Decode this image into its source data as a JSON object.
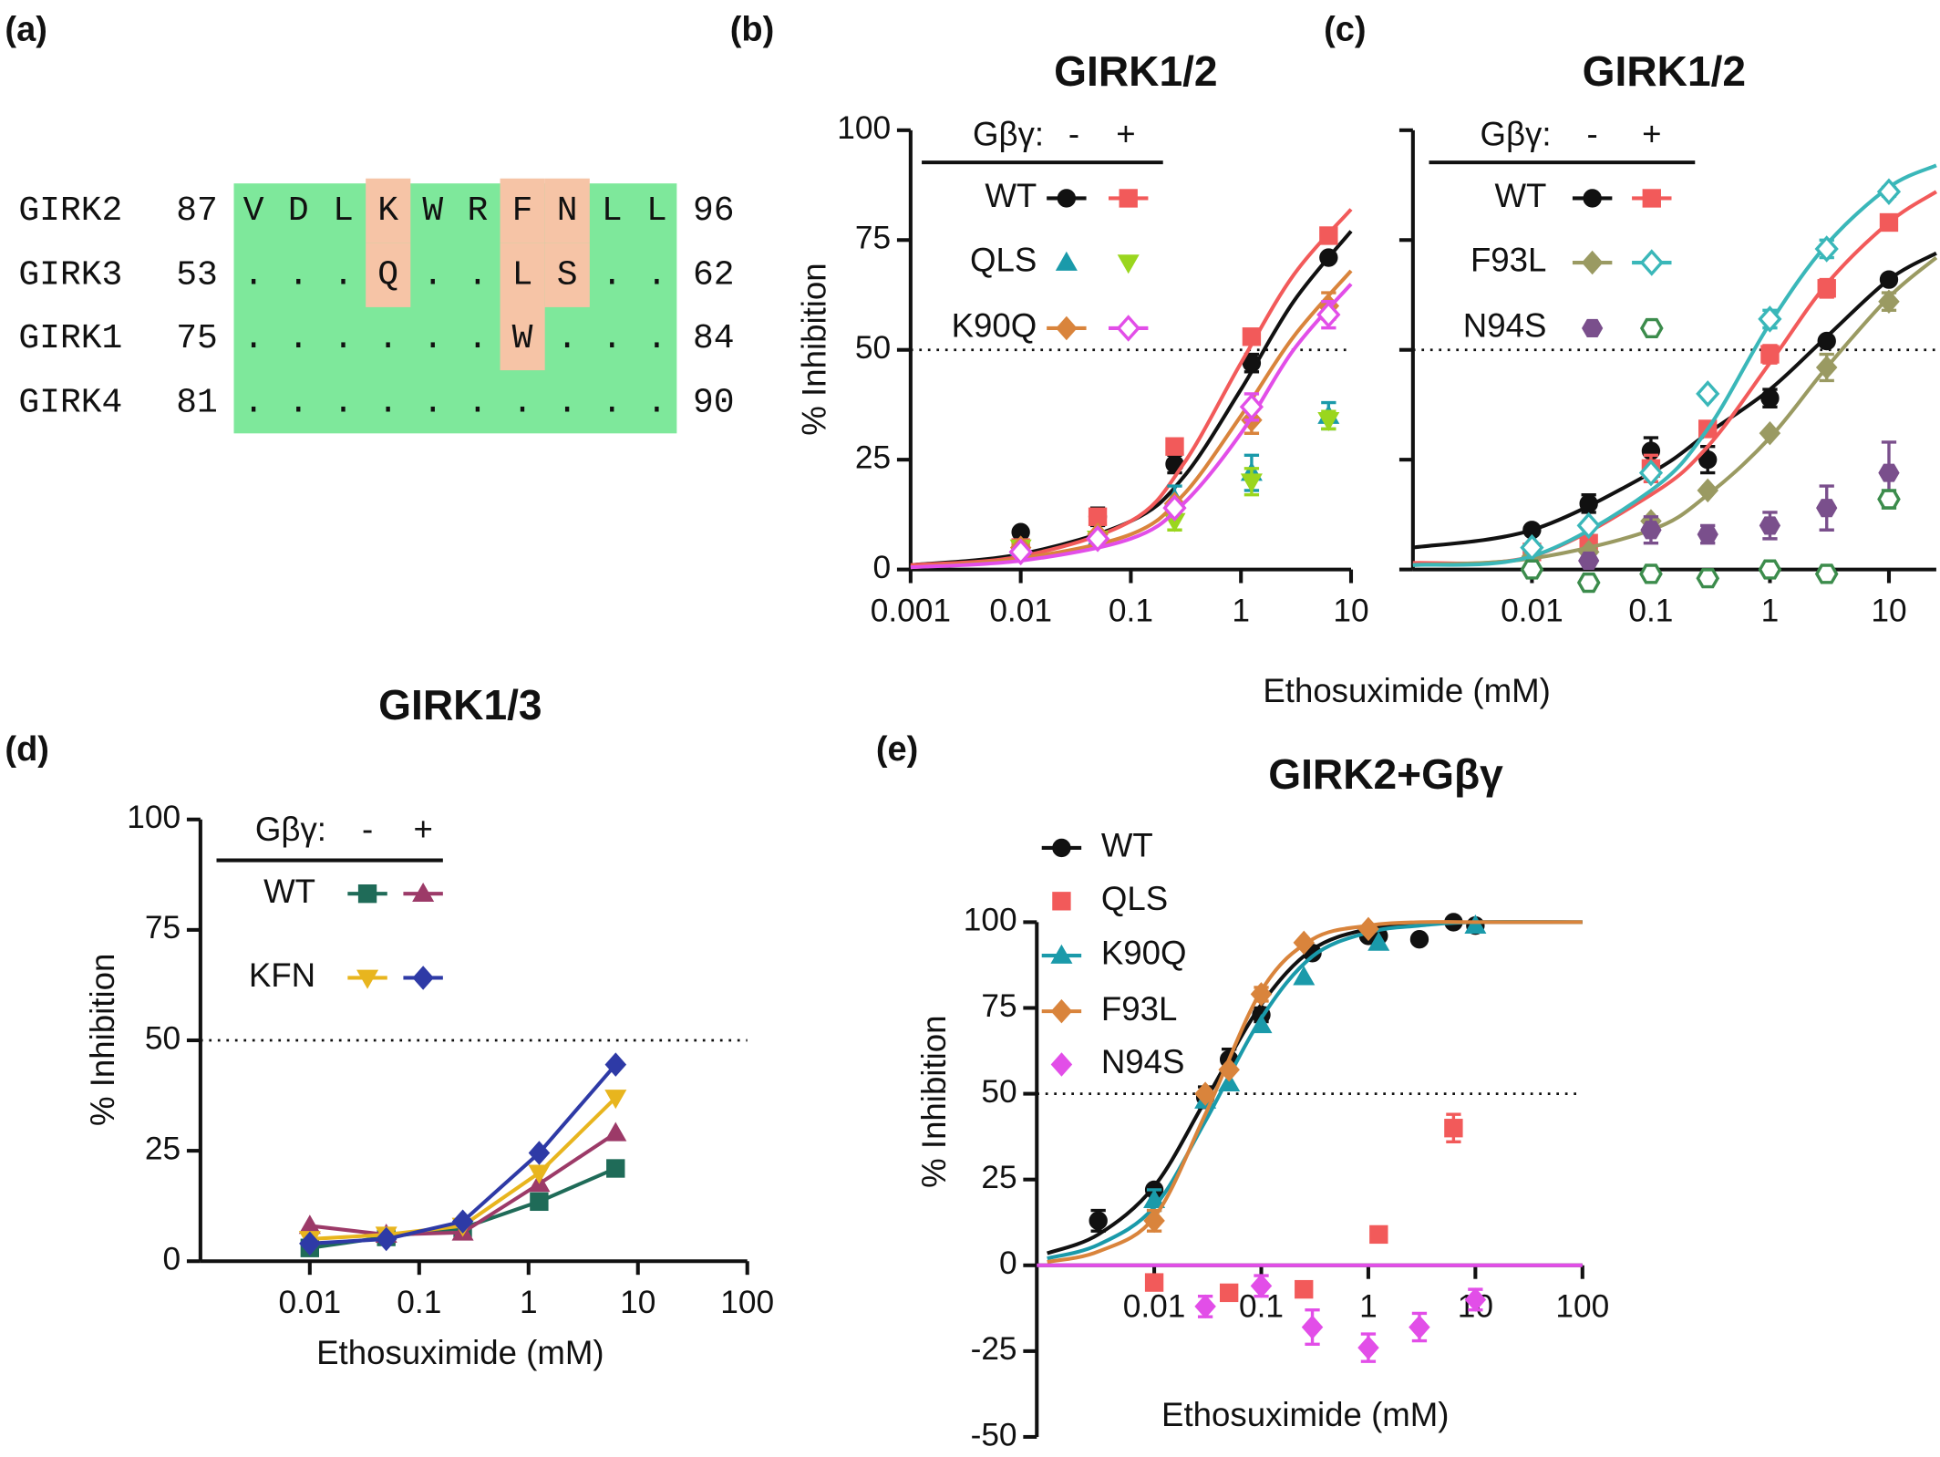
{
  "alignment": {
    "panel": "(a)",
    "colors": {
      "conserved": "#7ee89b",
      "variant": "#f6c4a6"
    },
    "rows": [
      {
        "name": "GIRK2",
        "start": 87,
        "residues": [
          "V",
          "D",
          "L",
          "K",
          "W",
          "R",
          "F",
          "N",
          "L",
          "L"
        ],
        "end": 96
      },
      {
        "name": "GIRK3",
        "start": 53,
        "residues": [
          ".",
          ".",
          ".",
          "Q",
          ".",
          ".",
          "L",
          "S",
          ".",
          "."
        ],
        "end": 62
      },
      {
        "name": "GIRK1",
        "start": 75,
        "residues": [
          ".",
          ".",
          ".",
          ".",
          ".",
          ".",
          "W",
          ".",
          ".",
          "."
        ],
        "end": 84
      },
      {
        "name": "GIRK4",
        "start": 81,
        "residues": [
          ".",
          ".",
          ".",
          ".",
          ".",
          ".",
          ".",
          ".",
          ".",
          "."
        ],
        "end": 90
      }
    ]
  },
  "chart_data": [
    {
      "panel": "(b)",
      "type": "scatter",
      "title": "GIRK1/2",
      "ylabel": "% Inhibition",
      "xscale": "log",
      "xlim": [
        0.001,
        10
      ],
      "xticks": [
        0.001,
        0.01,
        0.1,
        1,
        10
      ],
      "ylim": [
        0,
        100
      ],
      "yticks": [
        0,
        25,
        50,
        75,
        100
      ],
      "reference_line": 50,
      "legend": {
        "header": [
          "Gβγ:",
          "-",
          "+"
        ]
      },
      "x": [
        0.01,
        0.05,
        0.25,
        1.25,
        6.25
      ],
      "series": [
        {
          "name": "WT",
          "color": "#111111",
          "marker": "circle",
          "values": [
            8.5,
            12,
            24,
            47,
            71
          ],
          "errors": [
            null,
            2,
            2,
            2,
            null
          ],
          "fit": {
            "x": [
              0.001,
              0.01,
              0.1,
              0.3,
              1,
              3,
              10
            ],
            "values": [
              1,
              3.5,
              11,
              21,
              41,
              61,
              77
            ]
          }
        },
        {
          "name": "WT",
          "color": "#f25a5a",
          "marker": "square",
          "values": [
            5,
            12,
            28,
            53,
            76
          ],
          "errors": [
            null,
            null,
            null,
            null,
            null
          ],
          "fit": {
            "x": [
              0.001,
              0.01,
              0.1,
              0.3,
              1,
              3,
              10
            ],
            "values": [
              1,
              3,
              11,
              24,
              47,
              67,
              82
            ]
          }
        },
        {
          "name": "QLS",
          "color": "#1a9aaa",
          "marker": "triangle",
          "values": [
            5,
            7,
            16,
            22,
            35
          ],
          "errors": [
            null,
            null,
            3,
            4,
            3
          ]
        },
        {
          "name": "QLS",
          "color": "#9ad61e",
          "marker": "triangle-down",
          "values": [
            5,
            7,
            11,
            20,
            34
          ],
          "errors": [
            null,
            null,
            2,
            3,
            2
          ]
        },
        {
          "name": "K90Q",
          "color": "#d9843c",
          "marker": "diamond",
          "values": [
            5,
            8,
            15,
            34,
            60
          ],
          "errors": [
            null,
            null,
            null,
            3,
            3
          ],
          "fit": {
            "x": [
              0.001,
              0.01,
              0.1,
              0.3,
              1,
              3,
              10
            ],
            "values": [
              0.5,
              2.5,
              8,
              17,
              35,
              53,
              68
            ]
          }
        },
        {
          "name": "K90Q",
          "color": "#e24ee8",
          "marker": "open-diamond",
          "values": [
            4,
            7,
            14,
            37,
            58
          ],
          "errors": [
            null,
            null,
            null,
            3,
            3
          ],
          "fit": {
            "x": [
              0.001,
              0.01,
              0.1,
              0.3,
              1,
              3,
              10
            ],
            "values": [
              0.5,
              2,
              7,
              15,
              31,
              50,
              65
            ]
          }
        }
      ]
    },
    {
      "panel": "(c)",
      "type": "scatter",
      "title": "GIRK1/2",
      "xlabel": "Ethosuximide (mM)",
      "xscale": "log",
      "xlim": [
        0.001,
        25
      ],
      "xticks": [
        0.01,
        0.1,
        1,
        10
      ],
      "ylim": [
        0,
        100
      ],
      "yticks": [
        0,
        25,
        50,
        75,
        100
      ],
      "ytick_labels": false,
      "reference_line": 50,
      "legend": {
        "header": [
          "Gβγ:",
          "-",
          "+"
        ]
      },
      "x": [
        0.01,
        0.03,
        0.1,
        0.3,
        1,
        3,
        10
      ],
      "series": [
        {
          "name": "WT",
          "color": "#111111",
          "marker": "circle",
          "values": [
            9,
            15,
            27,
            25,
            39,
            52,
            66
          ],
          "errors": [
            null,
            2,
            3,
            3,
            2,
            null,
            null
          ],
          "fit": {
            "x": [
              0.001,
              0.01,
              0.1,
              0.3,
              1,
              3,
              10,
              25
            ],
            "values": [
              5,
              9,
              22,
              31,
              41,
              53,
              66,
              72
            ]
          }
        },
        {
          "name": "WT",
          "color": "#f25a5a",
          "marker": "square",
          "values": [
            4,
            6,
            23,
            32,
            49,
            64,
            79
          ],
          "errors": [
            null,
            null,
            3,
            null,
            2,
            2,
            null
          ],
          "fit": {
            "x": [
              0.001,
              0.01,
              0.1,
              0.3,
              1,
              3,
              10,
              25
            ],
            "values": [
              1.5,
              3,
              17,
              28,
              47,
              65,
              79,
              86
            ]
          }
        },
        {
          "name": "F93L",
          "color": "#9a9a62",
          "marker": "diamond",
          "values": [
            3,
            4,
            11,
            18,
            31,
            46,
            61
          ],
          "errors": [
            null,
            null,
            null,
            null,
            null,
            3,
            2
          ],
          "fit": {
            "x": [
              0.001,
              0.01,
              0.1,
              0.3,
              1,
              3,
              10,
              25
            ],
            "values": [
              1,
              2.5,
              9,
              17,
              30,
              46,
              62,
              71
            ]
          }
        },
        {
          "name": "F93L",
          "color": "#3ab7b9",
          "marker": "open-diamond",
          "values": [
            5,
            10,
            22,
            40,
            57,
            73,
            86
          ],
          "errors": [
            null,
            null,
            null,
            null,
            2,
            2,
            1
          ],
          "fit": {
            "x": [
              0.001,
              0.01,
              0.1,
              0.3,
              1,
              3,
              10,
              25
            ],
            "values": [
              1,
              3,
              18,
              32,
              56,
              74,
              87,
              92
            ]
          }
        },
        {
          "name": "N94S",
          "color": "#7a4f8c",
          "marker": "hexagon",
          "values": [
            null,
            2,
            9,
            8,
            10,
            14,
            22
          ],
          "errors": [
            null,
            null,
            3,
            2,
            3,
            5,
            7
          ]
        },
        {
          "name": "N94S",
          "color": "#3c8c4c",
          "marker": "open-hexagon",
          "values": [
            0,
            -3,
            -1,
            -2,
            0,
            -1,
            16
          ],
          "errors": [
            null,
            null,
            null,
            null,
            null,
            null,
            2
          ]
        }
      ]
    },
    {
      "panel": "(d)",
      "type": "scatter",
      "title": "GIRK1/3",
      "ylabel": "% Inhibition",
      "xlabel": "Ethosuximide (mM)",
      "xscale": "log",
      "xlim": [
        0.001,
        100
      ],
      "xticks": [
        0.01,
        0.1,
        1,
        10,
        100
      ],
      "ylim": [
        0,
        100
      ],
      "yticks": [
        0,
        25,
        50,
        75,
        100
      ],
      "reference_line": 50,
      "connect": true,
      "legend": {
        "header": [
          "Gβγ:",
          "-",
          "+"
        ]
      },
      "x": [
        0.01,
        0.05,
        0.25,
        1.25,
        6.25
      ],
      "series": [
        {
          "name": "WT",
          "color": "#1f6b58",
          "marker": "square",
          "values": [
            3,
            5.5,
            7.5,
            13.5,
            21
          ]
        },
        {
          "name": "WT",
          "color": "#9c3a68",
          "marker": "triangle",
          "values": [
            8,
            6,
            6.5,
            17.5,
            29
          ]
        },
        {
          "name": "KFN",
          "color": "#e8b51e",
          "marker": "triangle-down",
          "values": [
            5,
            6,
            8,
            20,
            37
          ]
        },
        {
          "name": "KFN",
          "color": "#2e3aa6",
          "marker": "diamond",
          "values": [
            4,
            5,
            9,
            24.5,
            44.5
          ]
        }
      ]
    },
    {
      "panel": "(e)",
      "type": "scatter",
      "title": "GIRK2+Gβγ",
      "ylabel": "% Inhibition",
      "xlabel": "Ethosuximide (mM)",
      "xscale": "log",
      "xlim": [
        0.0008,
        100
      ],
      "xticks": [
        0.01,
        0.1,
        1,
        10,
        100
      ],
      "ylim": [
        -50,
        100
      ],
      "yticks": [
        -50,
        -25,
        0,
        25,
        50,
        75,
        100
      ],
      "reference_line": 50,
      "series": [
        {
          "name": "WT",
          "color": "#111111",
          "marker": "circle",
          "x": [
            0.003,
            0.01,
            0.03,
            0.05,
            0.1,
            0.3,
            1,
            1.25,
            3,
            6.25,
            10
          ],
          "values": [
            13,
            22,
            49,
            60,
            73,
            91,
            96,
            96,
            95,
            100,
            99
          ],
          "errors": [
            3,
            null,
            3,
            3,
            2,
            null,
            null,
            null,
            null,
            null,
            null
          ],
          "fit": {
            "x": [
              0.001,
              0.003,
              0.01,
              0.03,
              0.1,
              0.3,
              1,
              3,
              10,
              100
            ],
            "values": [
              3.5,
              9,
              23,
              48,
              76,
              92,
              98,
              99.5,
              100,
              100
            ]
          }
        },
        {
          "name": "QLS",
          "color": "#f25a5a",
          "marker": "square",
          "x": [
            0.01,
            0.05,
            0.25,
            1.25,
            6.25
          ],
          "values": [
            -5,
            -8,
            -7,
            9,
            40
          ],
          "errors": [
            null,
            null,
            null,
            2,
            4
          ]
        },
        {
          "name": "K90Q",
          "color": "#1a9aaa",
          "marker": "triangle",
          "x": [
            0.01,
            0.03,
            0.05,
            0.1,
            0.25,
            1.25,
            10
          ],
          "values": [
            19,
            48,
            53,
            70,
            84,
            94,
            99
          ],
          "errors": [
            3,
            null,
            null,
            null,
            null,
            null,
            null
          ],
          "fit": {
            "x": [
              0.001,
              0.003,
              0.01,
              0.03,
              0.1,
              0.3,
              1,
              3,
              10,
              100
            ],
            "values": [
              2,
              6,
              17,
              42,
              72,
              90,
              97,
              99,
              100,
              100
            ]
          }
        },
        {
          "name": "F93L",
          "color": "#d9843c",
          "marker": "diamond",
          "x": [
            0.01,
            0.03,
            0.05,
            0.1,
            0.25,
            1
          ],
          "values": [
            13,
            50,
            57,
            79,
            94,
            98
          ],
          "errors": [
            3,
            null,
            null,
            2,
            null,
            null
          ],
          "fit": {
            "x": [
              0.001,
              0.003,
              0.01,
              0.03,
              0.1,
              0.3,
              1,
              3,
              10,
              100
            ],
            "values": [
              1,
              4,
              14,
              44,
              80,
              95,
              99,
              100,
              100,
              100
            ]
          }
        },
        {
          "name": "N94S",
          "color": "#e24ee8",
          "marker": "diamond",
          "x": [
            0.03,
            0.1,
            0.3,
            1,
            3,
            10
          ],
          "values": [
            -12,
            -6,
            -18,
            -24,
            -18,
            -10
          ],
          "errors": [
            3,
            3,
            5,
            4,
            4,
            3
          ],
          "fit": {
            "x": [
              0.0008,
              100
            ],
            "values": [
              0,
              0
            ]
          }
        }
      ]
    }
  ]
}
